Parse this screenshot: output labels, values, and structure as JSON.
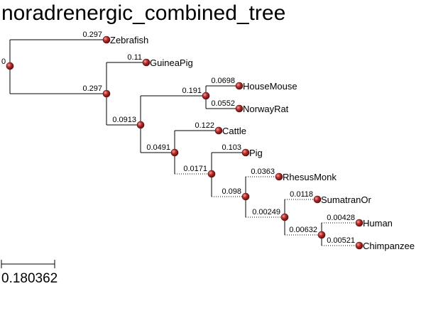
{
  "title": "noradrenergic_combined_tree",
  "scale_label": "0.180362",
  "root_label": "0",
  "colors": {
    "node_fill": "#b52a2a",
    "node_edge": "#5a0c0c",
    "node_highlight": "#f2a0a0",
    "line": "#000000"
  },
  "tree": {
    "id": "root",
    "length_label": "0",
    "children": [
      {
        "id": "zebrafish",
        "name": "Zebrafish",
        "length_label": "0.297"
      },
      {
        "id": "n1",
        "length_label": "0.297",
        "children": [
          {
            "id": "guineapig",
            "name": "GuineaPig",
            "length_label": "0.11"
          },
          {
            "id": "n2",
            "length_label": "0.0913",
            "children": [
              {
                "id": "n3",
                "length_label": "0.191",
                "children": [
                  {
                    "id": "housemouse",
                    "name": "HouseMouse",
                    "length_label": "0.0698"
                  },
                  {
                    "id": "norwayrat",
                    "name": "NorwayRat",
                    "length_label": "0.0552"
                  }
                ]
              },
              {
                "id": "n4",
                "length_label": "0.0491",
                "children": [
                  {
                    "id": "cattle",
                    "name": "Cattle",
                    "length_label": "0.122"
                  },
                  {
                    "id": "n5",
                    "length_label": "0.0171",
                    "children": [
                      {
                        "id": "pig",
                        "name": "Pig",
                        "length_label": "0.103"
                      },
                      {
                        "id": "n6",
                        "length_label": "0.098",
                        "children": [
                          {
                            "id": "rhesusmonk",
                            "name": "RhesusMonk",
                            "length_label": "0.0363"
                          },
                          {
                            "id": "n7",
                            "length_label": "0.00249",
                            "children": [
                              {
                                "id": "sumatranor",
                                "name": "SumatranOr",
                                "length_label": "0.0118"
                              },
                              {
                                "id": "n8",
                                "length_label": "0.00632",
                                "children": [
                                  {
                                    "id": "human",
                                    "name": "Human",
                                    "length_label": "0.00428"
                                  },
                                  {
                                    "id": "chimpanzee",
                                    "name": "Chimpanzee",
                                    "length_label": "0.00521"
                                  }
                                ]
                              }
                            ]
                          }
                        ]
                      }
                    ]
                  }
                ]
              }
            ]
          }
        ]
      }
    ]
  }
}
